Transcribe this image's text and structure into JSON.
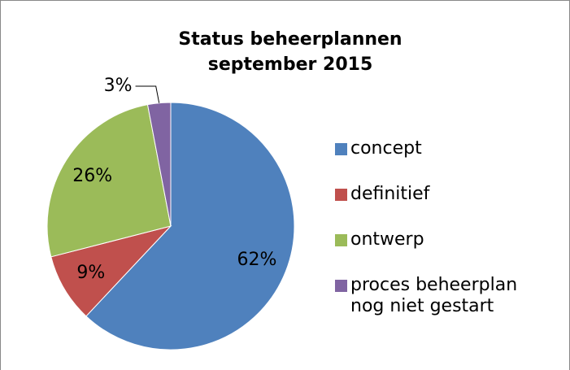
{
  "chart_data": {
    "type": "pie",
    "title": [
      "Status beheerplannen",
      "september 2015"
    ],
    "categories": [
      "concept",
      "definitief",
      "ontwerp",
      "proces beheerplan nog niet gestart"
    ],
    "values": [
      62,
      9,
      26,
      3
    ],
    "value_labels": [
      "62%",
      "9%",
      "26%",
      "3%"
    ],
    "colors": [
      "#4f81bd",
      "#c0504d",
      "#9bbb59",
      "#8064a2"
    ],
    "legend": "right"
  }
}
